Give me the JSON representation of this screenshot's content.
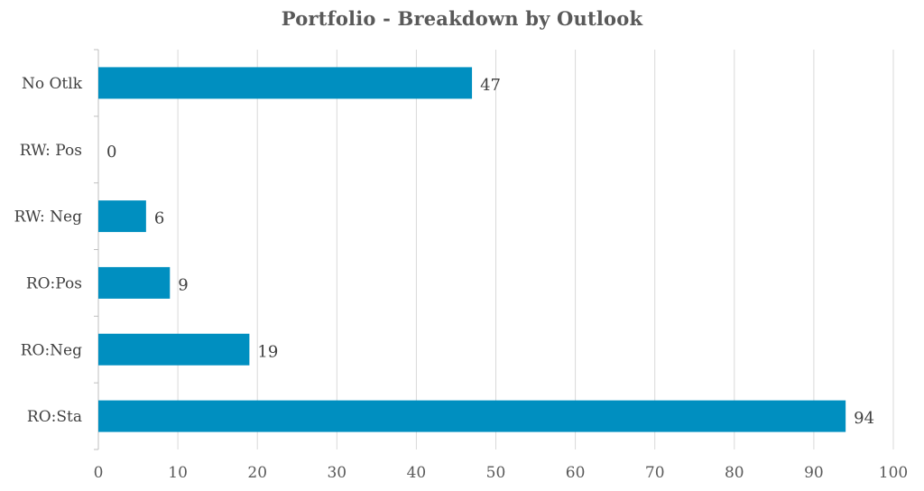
{
  "chart_data": {
    "type": "bar",
    "orientation": "horizontal",
    "title": "Portfolio - Breakdown by Outlook",
    "xlabel": "",
    "ylabel": "",
    "categories": [
      "No Otlk",
      "RW: Pos",
      "RW: Neg",
      "RO:Pos",
      "RO:Neg",
      "RO:Sta"
    ],
    "values": [
      47,
      0,
      6,
      9,
      19,
      94
    ],
    "xlim": [
      0,
      100
    ],
    "x_ticks": [
      0,
      10,
      20,
      30,
      40,
      50,
      60,
      70,
      80,
      90,
      100
    ],
    "grid": true,
    "legend": "none",
    "bar_color": "#008fc0"
  }
}
